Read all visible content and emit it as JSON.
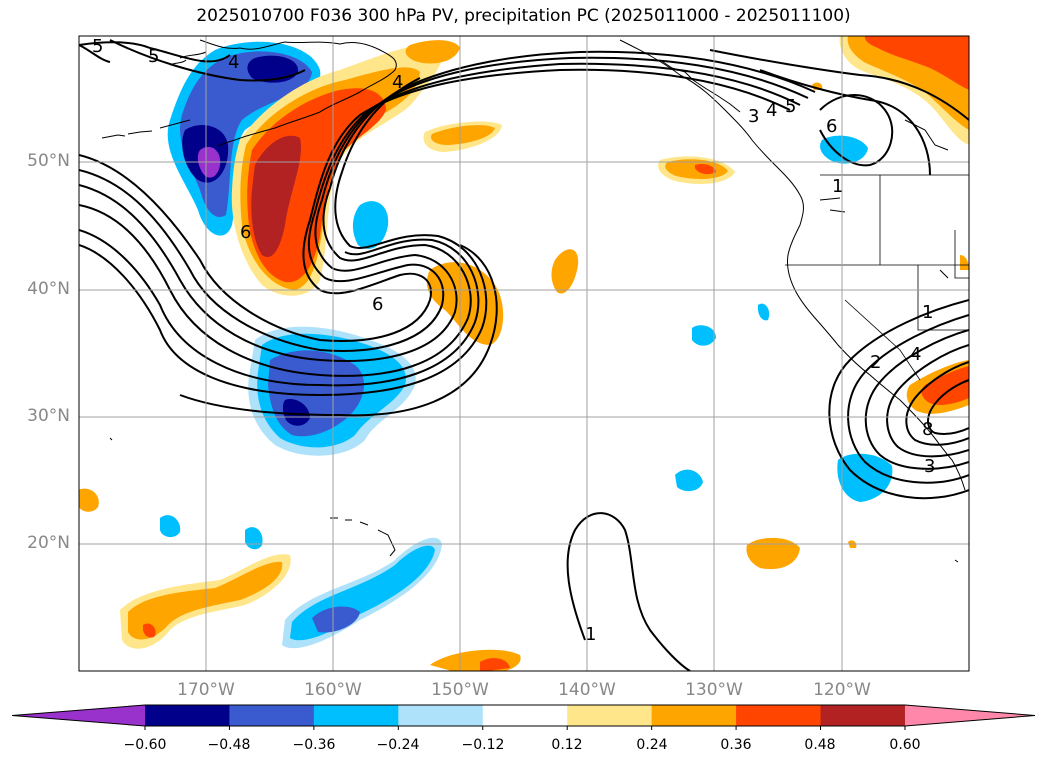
{
  "title": "2025010700 F036 300 hPa PV, precipitation PC (2025011000 - 2025011100)",
  "latitude_labels": [
    "50°N",
    "40°N",
    "30°N",
    "20°N"
  ],
  "longitude_labels": [
    "170°W",
    "160°W",
    "150°W",
    "140°W",
    "130°W",
    "120°W"
  ],
  "contour_labels": [
    "5",
    "4",
    "5",
    "4",
    "3",
    "4",
    "5",
    "6",
    "6",
    "6",
    "1",
    "1",
    "2",
    "4",
    "8",
    "3",
    "1"
  ],
  "colorbar": {
    "tick_labels": [
      "−0.60",
      "−0.48",
      "−0.36",
      "−0.24",
      "−0.12",
      "0.12",
      "0.24",
      "0.36",
      "0.48",
      "0.60"
    ],
    "levels": [
      -0.6,
      -0.48,
      -0.36,
      -0.24,
      -0.12,
      0.12,
      0.24,
      0.36,
      0.48,
      0.6
    ],
    "colors": [
      "#9932cc",
      "#00008b",
      "#3a5bcf",
      "#00bfff",
      "#ade2fa",
      "#ffffff",
      "#ffe68a",
      "#ffa500",
      "#ff4500",
      "#b22222",
      "#ff88aa"
    ],
    "extend": "both"
  },
  "map": {
    "projection": "PlateCarree",
    "lon_range": [
      -180,
      -110
    ],
    "lat_range": [
      10,
      60
    ],
    "gridlines": true,
    "coastlines": true,
    "state_borders": true
  }
}
